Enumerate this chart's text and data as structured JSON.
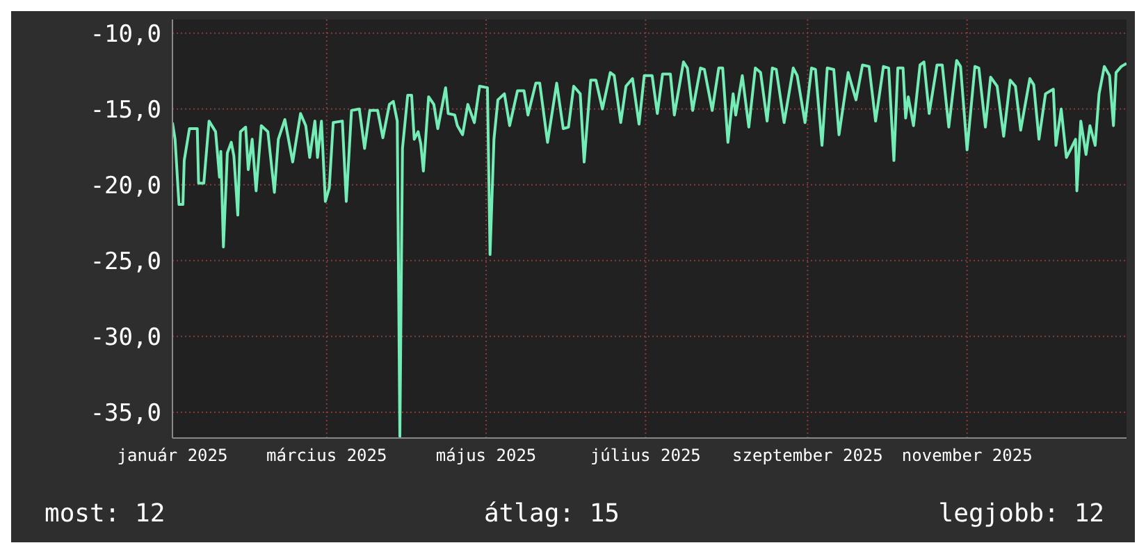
{
  "chart_data": {
    "type": "line",
    "x": [
      "2025-01-01",
      "2025-01-02",
      "2025-01-03T12:00",
      "2025-01-05",
      "2025-01-05T12:00",
      "2025-01-07T12:00",
      "2025-01-10T12:00",
      "2025-01-11",
      "2025-01-13",
      "2025-01-15",
      "2025-01-17T12:00",
      "2025-01-19",
      "2025-01-19T12:00",
      "2025-01-20T12:00",
      "2025-01-22",
      "2025-01-23T12:00",
      "2025-01-24T12:00",
      "2025-01-26",
      "2025-01-27",
      "2025-01-29",
      "2025-01-30",
      "2025-01-31T12:00",
      "2025-02-02",
      "2025-02-04",
      "2025-02-06T12:00",
      "2025-02-09",
      "2025-02-10T12:00",
      "2025-02-13",
      "2025-02-16",
      "2025-02-19",
      "2025-02-21",
      "2025-02-22T12:00",
      "2025-02-24T12:00",
      "2025-02-25T12:00",
      "2025-02-27",
      "2025-02-28T12:00",
      "2025-03-02",
      "2025-03-03T12:00",
      "2025-03-07",
      "2025-03-08T12:00",
      "2025-03-10T12:00",
      "2025-03-13T12:00",
      "2025-03-15T12:00",
      "2025-03-17T12:00",
      "2025-03-20T12:00",
      "2025-03-22T12:00",
      "2025-03-25",
      "2025-03-26T12:00",
      "2025-03-28",
      "2025-03-29",
      "2025-03-30",
      "2025-04-01",
      "2025-04-02T12:00",
      "2025-04-03T12:00",
      "2025-04-05",
      "2025-04-06",
      "2025-04-07",
      "2025-04-09",
      "2025-04-11",
      "2025-04-12T12:00",
      "2025-04-15T12:00",
      "2025-04-16T12:00",
      "2025-04-19",
      "2025-04-20",
      "2025-04-22",
      "2025-04-24",
      "2025-04-26T12:00",
      "2025-04-28T12:00",
      "2025-05-01T12:00",
      "2025-05-02T12:00",
      "2025-05-04",
      "2025-05-05T12:00",
      "2025-05-08",
      "2025-05-10",
      "2025-05-13",
      "2025-05-15T12:00",
      "2025-05-17",
      "2025-05-20",
      "2025-05-21T12:00",
      "2025-05-24T12:00",
      "2025-05-28",
      "2025-05-30T12:00",
      "2025-06-01T12:00",
      "2025-06-03T12:00",
      "2025-06-06",
      "2025-06-07T12:00",
      "2025-06-10",
      "2025-06-12",
      "2025-06-14T12:00",
      "2025-06-17T12:00",
      "2025-06-19",
      "2025-06-21T12:00",
      "2025-06-23T12:00",
      "2025-06-26",
      "2025-06-28T12:00",
      "2025-06-30T12:00",
      "2025-07-03T12:00",
      "2025-07-05T12:00",
      "2025-07-07T12:00",
      "2025-07-10T12:00",
      "2025-07-12",
      "2025-07-15T12:00",
      "2025-07-17",
      "2025-07-19",
      "2025-07-22",
      "2025-07-23T12:00",
      "2025-07-26T12:00",
      "2025-07-29",
      "2025-07-30T12:00",
      "2025-08-01T12:00",
      "2025-08-03T12:00",
      "2025-08-04T12:00",
      "2025-08-07",
      "2025-08-09T12:00",
      "2025-08-12",
      "2025-08-14",
      "2025-08-16T12:00",
      "2025-08-18T12:00",
      "2025-08-20",
      "2025-08-23",
      "2025-08-26T12:00",
      "2025-08-28",
      "2025-08-31",
      "2025-09-02T12:00",
      "2025-09-04",
      "2025-09-06T12:00",
      "2025-09-08T12:00",
      "2025-09-11",
      "2025-09-13",
      "2025-09-16T12:00",
      "2025-09-19T12:00",
      "2025-09-22",
      "2025-09-24T12:00",
      "2025-09-27",
      "2025-09-30",
      "2025-10-02",
      "2025-10-04",
      "2025-10-05T12:00",
      "2025-10-07T12:00",
      "2025-10-08T12:00",
      "2025-10-09T12:00",
      "2025-10-11T12:00",
      "2025-10-14",
      "2025-10-15T12:00",
      "2025-10-17T12:00",
      "2025-10-20T12:00",
      "2025-10-22T12:00",
      "2025-10-25",
      "2025-10-28",
      "2025-10-29T12:00",
      "2025-11-01",
      "2025-11-04",
      "2025-11-05T12:00",
      "2025-11-08",
      "2025-11-10",
      "2025-11-12T12:00",
      "2025-11-15",
      "2025-11-17T12:00",
      "2025-11-19T12:00",
      "2025-11-21T12:00",
      "2025-11-25",
      "2025-11-26T12:00",
      "2025-11-28T12:00",
      "2025-12-01",
      "2025-12-04",
      "2025-12-05",
      "2025-12-07",
      "2025-12-09",
      "2025-12-10T12:00",
      "2025-12-12T12:00",
      "2025-12-13",
      "2025-12-14T12:00",
      "2025-12-16T12:00",
      "2025-12-18",
      "2025-12-20",
      "2025-12-21T12:00",
      "2025-12-23T12:00",
      "2025-12-25T12:00",
      "2025-12-27",
      "2025-12-28",
      "2025-12-30",
      "2026-01-01"
    ],
    "series": [
      {
        "color": "#74ecb6",
        "values": [
          -15.9,
          -17.0,
          -21.3,
          -21.3,
          -18.4,
          -16.3,
          -16.3,
          -19.9,
          -19.9,
          -15.8,
          -16.5,
          -19.5,
          -17.8,
          -24.1,
          -17.9,
          -17.2,
          -18.1,
          -22.0,
          -16.5,
          -16.2,
          -19.0,
          -17.0,
          -20.4,
          -16.1,
          -16.5,
          -20.5,
          -17.0,
          -15.7,
          -18.5,
          -15.3,
          -16.1,
          -18.2,
          -15.8,
          -18.2,
          -15.8,
          -21.1,
          -20.2,
          -15.9,
          -15.8,
          -21.1,
          -15.1,
          -15.0,
          -17.6,
          -15.1,
          -15.1,
          -16.9,
          -14.7,
          -14.5,
          -15.8,
          -36.6,
          -17.6,
          -14.1,
          -14.1,
          -17.0,
          -16.5,
          -17.3,
          -19.1,
          -14.2,
          -14.7,
          -16.3,
          -13.6,
          -15.3,
          -15.4,
          -16.1,
          -16.7,
          -14.7,
          -15.9,
          -13.5,
          -13.6,
          -24.6,
          -17.0,
          -14.4,
          -14.0,
          -16.1,
          -13.8,
          -13.8,
          -15.4,
          -13.3,
          -13.3,
          -17.2,
          -13.3,
          -16.3,
          -16.2,
          -13.5,
          -14.0,
          -18.5,
          -13.1,
          -13.1,
          -15.0,
          -12.6,
          -12.8,
          -15.9,
          -13.5,
          -13.0,
          -16.0,
          -12.8,
          -12.8,
          -15.3,
          -12.7,
          -12.7,
          -15.4,
          -11.9,
          -12.3,
          -15.1,
          -12.3,
          -12.4,
          -15.1,
          -12.3,
          -12.3,
          -17.2,
          -14.0,
          -15.4,
          -12.8,
          -16.2,
          -12.3,
          -12.6,
          -15.8,
          -12.3,
          -12.4,
          -15.9,
          -12.3,
          -12.8,
          -15.9,
          -12.3,
          -12.4,
          -17.4,
          -12.3,
          -12.4,
          -16.7,
          -12.6,
          -14.4,
          -12.1,
          -12.2,
          -15.8,
          -12.2,
          -12.3,
          -18.4,
          -12.3,
          -12.3,
          -15.6,
          -14.2,
          -16.1,
          -12.1,
          -11.9,
          -15.3,
          -12.1,
          -12.1,
          -16.2,
          -11.8,
          -12.2,
          -17.7,
          -12.2,
          -12.3,
          -16.2,
          -12.9,
          -13.5,
          -16.8,
          -13.1,
          -13.5,
          -16.4,
          -13.0,
          -13.4,
          -17.0,
          -14.0,
          -13.7,
          -17.4,
          -15.0,
          -18.2,
          -17.7,
          -17.0,
          -20.4,
          -15.8,
          -18.0,
          -16.1,
          -17.4,
          -14.0,
          -12.2,
          -12.8,
          -16.1,
          -12.6,
          -12.2,
          -12.0
        ]
      }
    ],
    "xlim": [
      "2025-01-01",
      "2026-01-01"
    ],
    "xticks": [
      {
        "value": "2025-01-01",
        "label": "január 2025"
      },
      {
        "value": "2025-03-01",
        "label": "március 2025"
      },
      {
        "value": "2025-05-01",
        "label": "május 2025"
      },
      {
        "value": "2025-07-01",
        "label": "július 2025"
      },
      {
        "value": "2025-09-01",
        "label": "szeptember 2025"
      },
      {
        "value": "2025-11-01",
        "label": "november 2025"
      }
    ],
    "ylim": [
      -36.7,
      -9.1
    ],
    "yticks": [
      {
        "value": -35,
        "label": "-35,0"
      },
      {
        "value": -30,
        "label": "-30,0"
      },
      {
        "value": -25,
        "label": "-25,0"
      },
      {
        "value": -20,
        "label": "-20,0"
      },
      {
        "value": -15,
        "label": "-15,0"
      },
      {
        "value": -10,
        "label": "-10,0"
      }
    ],
    "grid": true,
    "marker": "none",
    "line_style": "solid",
    "annotations": [
      "most: 12",
      "átlag: 15",
      "legjobb: 12"
    ]
  }
}
